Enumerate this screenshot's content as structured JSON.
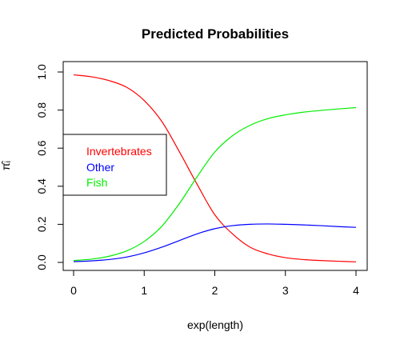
{
  "chart_data": {
    "type": "line",
    "title": "Predicted Probabilities",
    "xlabel": "exp(length)",
    "ylabel": "π̂ᵢ",
    "xlim": [
      0,
      4
    ],
    "ylim": [
      0,
      1
    ],
    "x_ticks": [
      "0",
      "1",
      "2",
      "3",
      "4"
    ],
    "y_ticks": [
      "0.0",
      "0.2",
      "0.4",
      "0.6",
      "0.8",
      "1.0"
    ],
    "grid": false,
    "legend_position": "left",
    "series": [
      {
        "name": "Invertebrates",
        "color": "#ff0000",
        "x": [
          0,
          0.25,
          0.5,
          0.75,
          1.0,
          1.25,
          1.5,
          1.75,
          2.0,
          2.25,
          2.5,
          2.75,
          3.0,
          3.25,
          3.5,
          3.75,
          4.0
        ],
        "y": [
          0.985,
          0.975,
          0.955,
          0.92,
          0.85,
          0.74,
          0.58,
          0.41,
          0.25,
          0.15,
          0.08,
          0.045,
          0.025,
          0.015,
          0.01,
          0.006,
          0.003
        ]
      },
      {
        "name": "Other",
        "color": "#0000ff",
        "x": [
          0,
          0.25,
          0.5,
          0.75,
          1.0,
          1.25,
          1.5,
          1.75,
          2.0,
          2.25,
          2.5,
          2.75,
          3.0,
          3.25,
          3.5,
          3.75,
          4.0
        ],
        "y": [
          0.004,
          0.008,
          0.015,
          0.028,
          0.05,
          0.08,
          0.115,
          0.15,
          0.177,
          0.193,
          0.2,
          0.202,
          0.2,
          0.197,
          0.193,
          0.188,
          0.184
        ]
      },
      {
        "name": "Fish",
        "color": "#00ee00",
        "x": [
          0,
          0.25,
          0.5,
          0.75,
          1.0,
          1.25,
          1.5,
          1.75,
          2.0,
          2.25,
          2.5,
          2.75,
          3.0,
          3.25,
          3.5,
          3.75,
          4.0
        ],
        "y": [
          0.01,
          0.017,
          0.032,
          0.06,
          0.11,
          0.19,
          0.31,
          0.45,
          0.58,
          0.665,
          0.72,
          0.755,
          0.775,
          0.789,
          0.798,
          0.806,
          0.813
        ]
      }
    ]
  }
}
